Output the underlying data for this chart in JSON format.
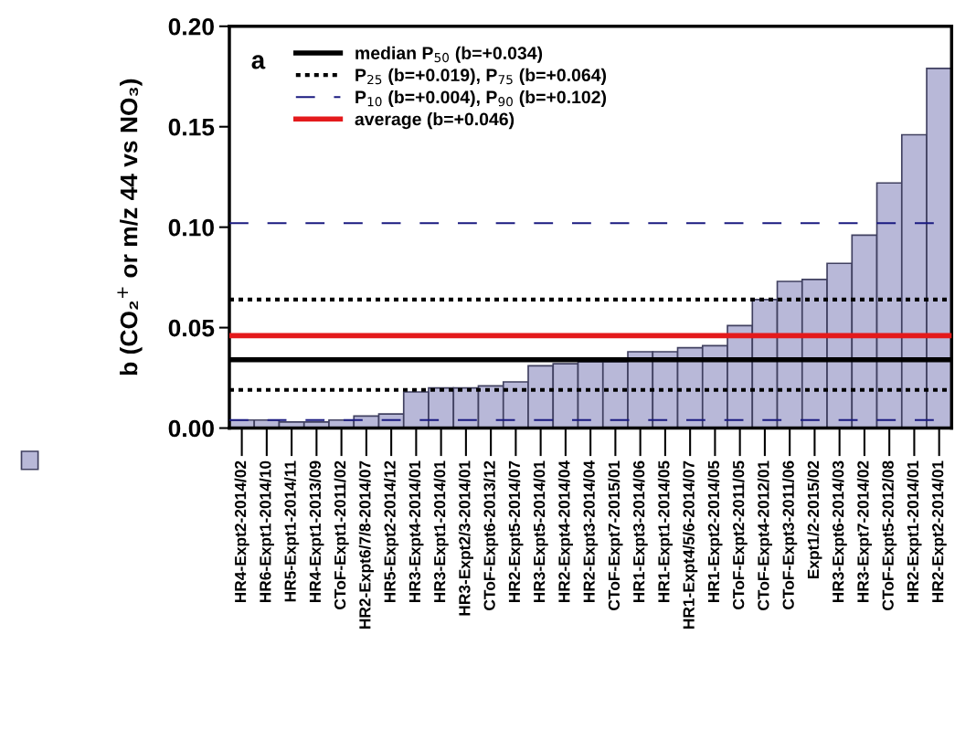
{
  "chart_data": {
    "type": "bar",
    "categories": [
      "HR4-Expt2-2014/02",
      "HR6-Expt1-2014/10",
      "HR5-Expt1-2014/11",
      "HR4-Expt1-2013/09",
      "CToF-Expt1-2011/02",
      "HR2-Expt6/7/8-2014/07",
      "HR5-Expt2-2014/12",
      "HR3-Expt4-2014/01",
      "HR3-Expt1-2014/01",
      "HR3-Expt2/3-2014/01",
      "CToF-Expt6-2013/12",
      "HR2-Expt5-2014/07",
      "HR3-Expt5-2014/01",
      "HR2-Expt4-2014/04",
      "HR2-Expt3-2014/04",
      "CToF-Expt7-2015/01",
      "HR1-Expt3-2014/06",
      "HR1-Expt1-2014/05",
      "HR1-Expt4/5/6-2014/07",
      "HR1-Expt2-2014/05",
      "CToF-Expt2-2011/05",
      "CToF-Expt4-2012/01",
      "CToF-Expt3-2011/06",
      "Expt1/2-2015/02",
      "HR3-Expt6-2014/03",
      "HR3-Expt7-2014/02",
      "CToF-Expt5-2012/08",
      "HR2-Expt1-2014/01",
      "HR2-Expt2-2014/01"
    ],
    "series": [
      {
        "color": "#b8b8d8",
        "values": [
          0.004,
          0.004,
          0.003,
          0.003,
          0.004,
          0.006,
          0.007,
          0.018,
          0.02,
          0.02,
          0.021,
          0.023,
          0.031,
          0.032,
          0.033,
          0.033,
          0.038,
          0.038,
          0.04,
          0.041,
          0.051,
          0.064,
          0.073,
          0.074,
          0.082,
          0.096,
          0.122,
          0.146,
          0.179
        ]
      }
    ],
    "ylabel": "b (CO₂$^{+}$ or m/z 44 vs NO₃)",
    "ylim": [
      0,
      0.2
    ],
    "yticks": [
      {
        "value": 0,
        "label": "0.00"
      },
      {
        "value": 0.05,
        "label": "0.05"
      },
      {
        "value": 0.1,
        "label": "0.10"
      },
      {
        "value": 0.15,
        "label": "0.15"
      },
      {
        "value": 0.2,
        "label": "0.20"
      }
    ],
    "ref_lines": [
      {
        "axis": "y",
        "value": 0.034,
        "label": "median P$_{50}$ (b=+0.034)",
        "color": "#000000",
        "line_style": "solid"
      },
      {
        "axis": "y",
        "value": 0.019,
        "label": "P$_{25}$ (b=+0.019), P$_{75}$ (b=+0.064)",
        "color": "#000000",
        "line_style": "dotted"
      },
      {
        "axis": "y",
        "value": 0.064,
        "color": "#000000",
        "line_style": "dotted"
      },
      {
        "axis": "y",
        "value": 0.004,
        "label": "P$_{10}$ (b=+0.004), P$_{90}$ (b=+0.102)",
        "color": "#1a1a80",
        "line_style": "dashed"
      },
      {
        "axis": "y",
        "value": 0.102,
        "color": "#1a1a80",
        "line_style": "dashed"
      },
      {
        "axis": "y",
        "value": 0.046,
        "label": "average (b=+0.046)",
        "color": "#e41a1c",
        "line_style": "solid"
      }
    ],
    "annotations": [
      "a"
    ],
    "legend": "top left",
    "grid": false
  }
}
